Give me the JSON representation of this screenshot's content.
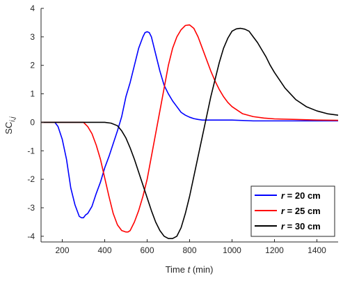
{
  "chart_data": {
    "type": "line",
    "xlabel_prefix": "Time ",
    "xlabel_var": "t",
    "xlabel_suffix": " (min)",
    "ylabel_base": "SC",
    "ylabel_sub": "i,j",
    "xlim": [
      100,
      1500
    ],
    "ylim": [
      -4.2,
      4
    ],
    "xticks": [
      200,
      400,
      600,
      800,
      1000,
      1200,
      1400
    ],
    "yticks": [
      -4,
      -3,
      -2,
      -1,
      0,
      1,
      2,
      3,
      4
    ],
    "legend_position": "bottom-right",
    "series": [
      {
        "name": "r = 20 cm",
        "legend_var": "r",
        "legend_rest": " = 20 cm",
        "color": "#0000ff",
        "x": [
          165,
          180,
          200,
          220,
          240,
          260,
          280,
          290,
          300,
          310,
          320,
          340,
          360,
          380,
          400,
          420,
          440,
          460,
          480,
          500,
          520,
          540,
          560,
          580,
          590,
          600,
          610,
          620,
          630,
          640,
          660,
          680,
          700,
          720,
          740,
          760,
          780,
          800,
          820,
          840,
          860,
          880,
          900,
          950,
          1000,
          1100,
          1200,
          1300,
          1400,
          1500
        ],
        "y": [
          0,
          -0.15,
          -0.6,
          -1.3,
          -2.3,
          -2.9,
          -3.3,
          -3.35,
          -3.35,
          -3.25,
          -3.2,
          -2.95,
          -2.5,
          -2.1,
          -1.6,
          -1.2,
          -0.75,
          -0.3,
          0.2,
          0.9,
          1.4,
          2.0,
          2.6,
          3.0,
          3.15,
          3.18,
          3.15,
          3.0,
          2.7,
          2.4,
          1.8,
          1.3,
          1.0,
          0.75,
          0.55,
          0.35,
          0.25,
          0.18,
          0.13,
          0.1,
          0.08,
          0.08,
          0.08,
          0.08,
          0.08,
          0.05,
          0.05,
          0.05,
          0.05,
          0.05
        ]
      },
      {
        "name": "r = 25 cm",
        "legend_var": "r",
        "legend_rest": " = 25 cm",
        "color": "#ff0000",
        "x": [
          100,
          300,
          320,
          340,
          360,
          380,
          400,
          420,
          440,
          460,
          480,
          500,
          510,
          520,
          540,
          560,
          580,
          600,
          620,
          640,
          660,
          680,
          700,
          720,
          740,
          760,
          780,
          800,
          820,
          840,
          860,
          880,
          900,
          920,
          940,
          960,
          980,
          1000,
          1050,
          1100,
          1150,
          1200,
          1300,
          1400,
          1500
        ],
        "y": [
          0,
          0,
          -0.15,
          -0.4,
          -0.8,
          -1.3,
          -1.95,
          -2.6,
          -3.2,
          -3.6,
          -3.8,
          -3.85,
          -3.85,
          -3.8,
          -3.5,
          -3.1,
          -2.6,
          -2.0,
          -1.2,
          -0.4,
          0.4,
          1.2,
          2.0,
          2.6,
          3.0,
          3.25,
          3.4,
          3.42,
          3.3,
          3.0,
          2.6,
          2.2,
          1.8,
          1.45,
          1.15,
          0.9,
          0.7,
          0.55,
          0.3,
          0.2,
          0.15,
          0.12,
          0.1,
          0.08,
          0.07
        ]
      },
      {
        "name": "r = 30 cm",
        "legend_var": "r",
        "legend_rest": " = 30 cm",
        "color": "#000000",
        "x": [
          100,
          400,
          430,
          460,
          480,
          500,
          520,
          540,
          560,
          580,
          600,
          620,
          640,
          660,
          680,
          700,
          720,
          740,
          760,
          780,
          800,
          820,
          840,
          860,
          880,
          900,
          920,
          940,
          960,
          980,
          1000,
          1020,
          1040,
          1060,
          1080,
          1100,
          1120,
          1140,
          1160,
          1180,
          1200,
          1250,
          1300,
          1350,
          1400,
          1450,
          1500
        ],
        "y": [
          0,
          0,
          -0.03,
          -0.12,
          -0.3,
          -0.55,
          -0.9,
          -1.3,
          -1.75,
          -2.2,
          -2.65,
          -3.1,
          -3.5,
          -3.8,
          -4.0,
          -4.08,
          -4.08,
          -4.0,
          -3.7,
          -3.2,
          -2.6,
          -1.9,
          -1.2,
          -0.5,
          0.2,
          0.9,
          1.5,
          2.1,
          2.6,
          2.95,
          3.2,
          3.28,
          3.3,
          3.27,
          3.2,
          3.0,
          2.8,
          2.55,
          2.3,
          2.0,
          1.75,
          1.2,
          0.8,
          0.55,
          0.4,
          0.3,
          0.25
        ]
      }
    ]
  }
}
